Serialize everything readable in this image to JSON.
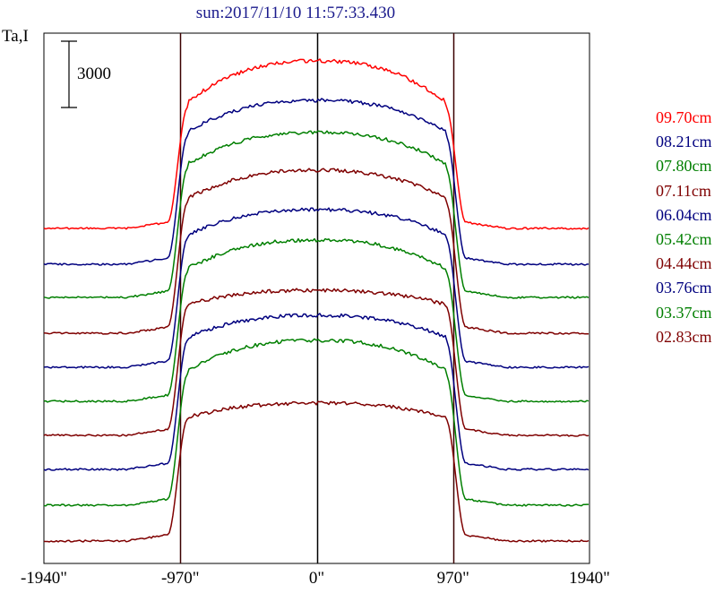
{
  "title": "sun:2017/11/10 11:57:33.430",
  "ylabel": "Ta,I",
  "scale_bar_label": "3000",
  "chart_data": {
    "type": "line",
    "title": "sun:2017/11/10 11:57:33.430",
    "xlabel": "",
    "ylabel": "Ta,I",
    "x_ticks": [
      "-1940\"",
      "-970\"",
      "0\"",
      "970\"",
      "1940\""
    ],
    "x_tick_values": [
      -1940,
      -970,
      0,
      970,
      1940
    ],
    "xlim": [
      -1940,
      1940
    ],
    "vertical_lines": [
      -970,
      0,
      970
    ],
    "scale_bar": 3000,
    "grid": false,
    "legend_position": "right",
    "series": [
      {
        "name": "09.70cm",
        "color": "#ff0000",
        "baseline": 255,
        "limb_level": 120,
        "peak_level": 68
      },
      {
        "name": "08.21cm",
        "color": "#00007f",
        "baseline": 295,
        "limb_level": 152,
        "peak_level": 112
      },
      {
        "name": "07.80cm",
        "color": "#007f00",
        "baseline": 332,
        "limb_level": 188,
        "peak_level": 148
      },
      {
        "name": "07.11cm",
        "color": "#7f0000",
        "baseline": 372,
        "limb_level": 226,
        "peak_level": 190
      },
      {
        "name": "06.04cm",
        "color": "#00007f",
        "baseline": 410,
        "limb_level": 266,
        "peak_level": 234
      },
      {
        "name": "05.42cm",
        "color": "#007f00",
        "baseline": 448,
        "limb_level": 304,
        "peak_level": 268
      },
      {
        "name": "04.44cm",
        "color": "#7f0000",
        "baseline": 486,
        "limb_level": 342,
        "peak_level": 324
      },
      {
        "name": "03.76cm",
        "color": "#00007f",
        "baseline": 524,
        "limb_level": 380,
        "peak_level": 352
      },
      {
        "name": "03.37cm",
        "color": "#007f00",
        "baseline": 564,
        "limb_level": 418,
        "peak_level": 380
      },
      {
        "name": "02.83cm",
        "color": "#7f0000",
        "baseline": 604,
        "limb_level": 468,
        "peak_level": 450
      }
    ]
  }
}
